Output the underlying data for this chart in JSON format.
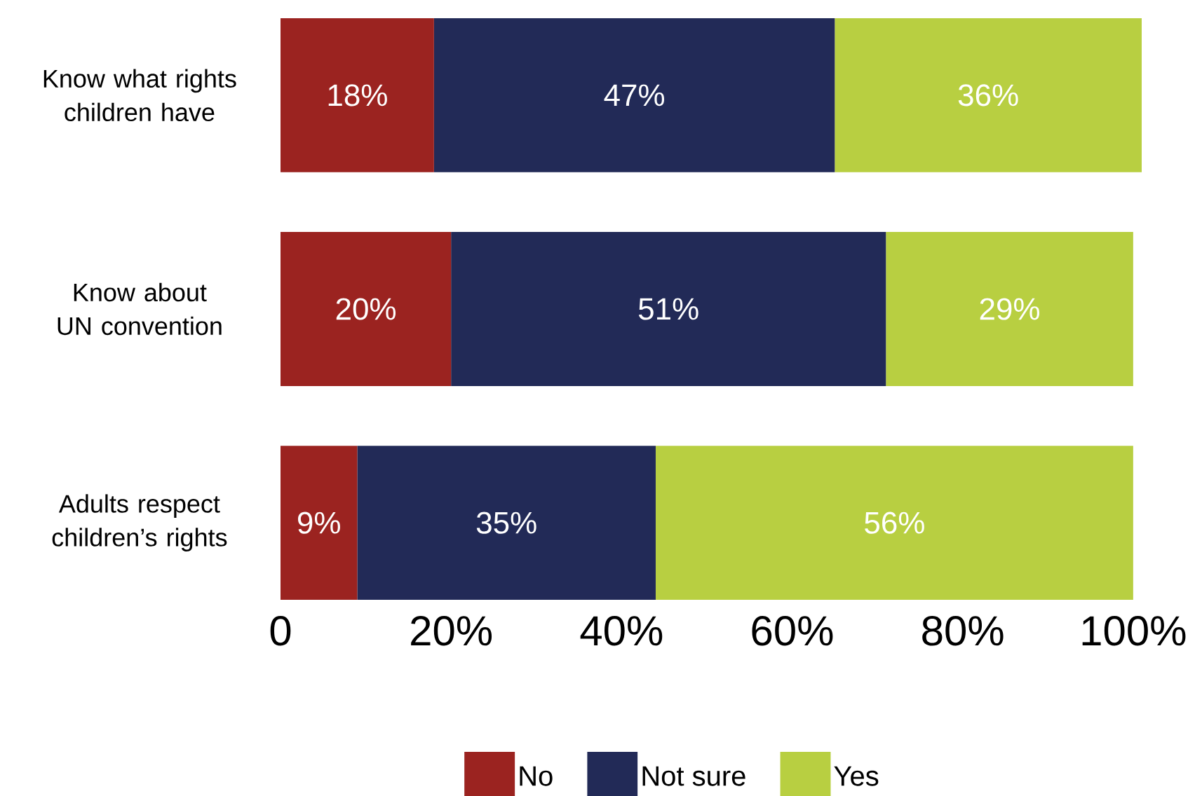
{
  "chart_data": {
    "type": "bar",
    "orientation": "horizontal",
    "stacked": true,
    "categories": [
      "Know what rights children have",
      "Know about UN convention",
      "Adults respect children’s rights"
    ],
    "series": [
      {
        "name": "No",
        "color": "#9b2320",
        "values": [
          18,
          20,
          9
        ],
        "value_labels": [
          "18%",
          "20%",
          "9%"
        ]
      },
      {
        "name": "Not sure",
        "color": "#222a57",
        "values": [
          47,
          51,
          35
        ],
        "value_labels": [
          "47%",
          "51%",
          "35%"
        ]
      },
      {
        "name": "Yes",
        "color": "#b8cf41",
        "values": [
          36,
          29,
          56
        ],
        "value_labels": [
          "36%",
          "29%",
          "56%"
        ]
      }
    ],
    "xlim": [
      0,
      101
    ],
    "xticks": [
      0,
      {
        "value": 20,
        "label": "20%"
      },
      {
        "value": 40,
        "label": "40%"
      },
      {
        "value": 60,
        "label": "60%"
      },
      {
        "value": 80,
        "label": "80%"
      },
      {
        "value": 100,
        "label": "100%"
      }
    ],
    "legend": "bottom"
  }
}
